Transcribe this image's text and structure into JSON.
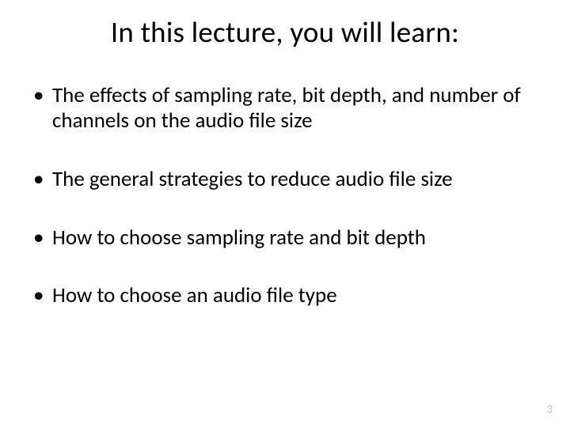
{
  "slide": {
    "title": "In this lecture, you will learn:",
    "bullets": [
      "The effects of sampling rate, bit depth, and number of channels on the audio file size",
      "The general strategies to reduce audio file size",
      "How to choose sampling rate and bit depth",
      "How to choose an audio file type"
    ],
    "page_number": "3",
    "styling": {
      "background_color": "#ffffff",
      "text_color": "#000000",
      "page_number_color": "#bfbfbf",
      "title_fontsize": 37,
      "bullet_fontsize": 27,
      "page_number_fontsize": 14,
      "font_family": "Calibri",
      "bullet_marker": "•"
    }
  }
}
